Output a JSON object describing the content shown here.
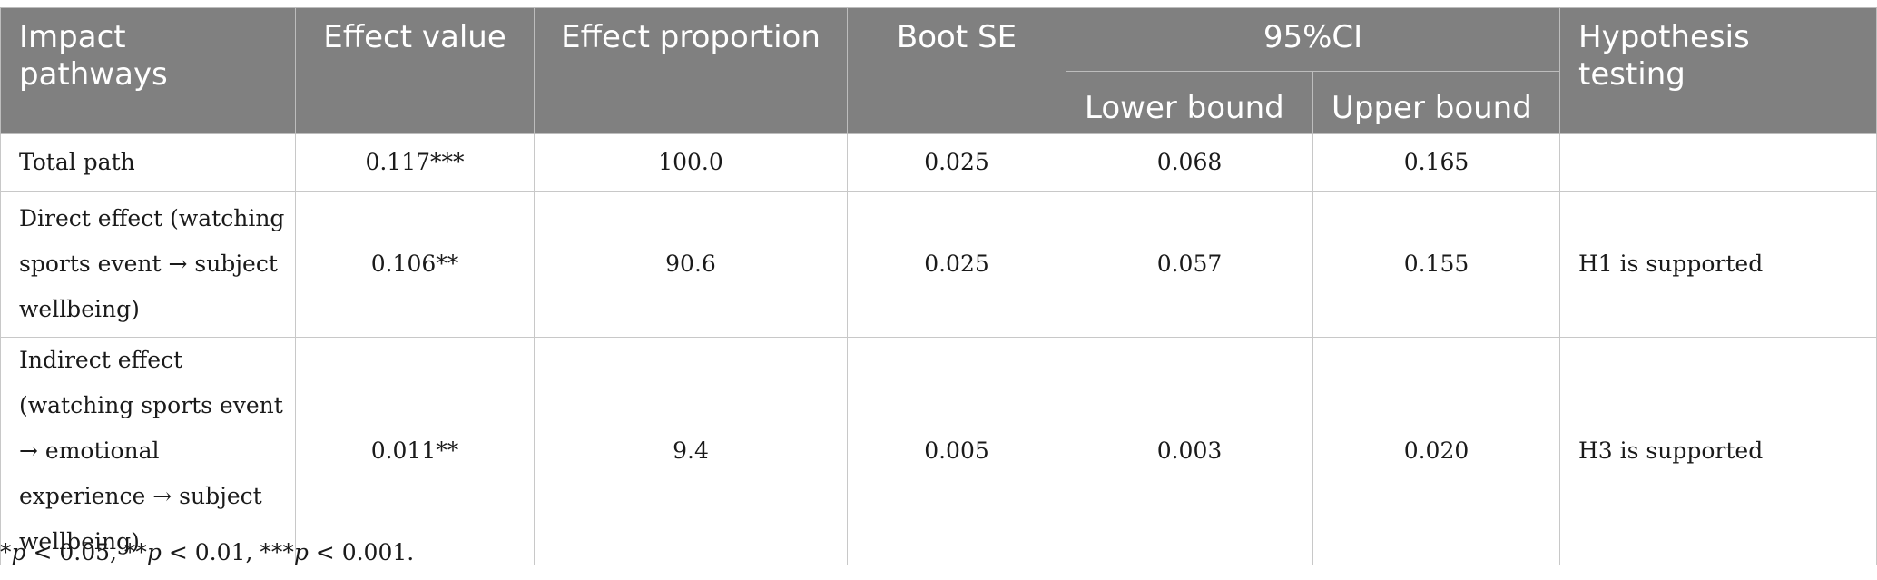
{
  "table": {
    "headers": {
      "impact_pathways": "Impact pathways",
      "effect_value": "Effect value",
      "effect_proportion": "Effect proportion",
      "boot_se": "Boot SE",
      "ci": "95%CI",
      "lower_bound": "Lower bound",
      "upper_bound": "Upper bound",
      "hypothesis_testing": "Hypothesis testing"
    },
    "rows": [
      {
        "pathway": "Total path",
        "effect_value": "0.117***",
        "effect_proportion": "100.0",
        "boot_se": "0.025",
        "lower": "0.068",
        "upper": "0.165",
        "hypothesis": ""
      },
      {
        "pathway": "Direct effect (watching sports event → subject wellbeing)",
        "effect_value": "0.106**",
        "effect_proportion": "90.6",
        "boot_se": "0.025",
        "lower": "0.057",
        "upper": "0.155",
        "hypothesis": "H1 is supported"
      },
      {
        "pathway": "Indirect effect (watching sports event → emotional experience → subject wellbeing)",
        "effect_value": "0.011**",
        "effect_proportion": "9.4",
        "boot_se": "0.005",
        "lower": "0.003",
        "upper": "0.020",
        "hypothesis": "H3 is supported"
      }
    ]
  },
  "footnote": {
    "p1_stars": "*",
    "p1_var": "p",
    "p1_rest": " < 0.05, ",
    "p2_stars": "**",
    "p2_var": "p",
    "p2_rest": " < 0.01, ",
    "p3_stars": "***",
    "p3_var": "p",
    "p3_rest": " < 0.001."
  }
}
